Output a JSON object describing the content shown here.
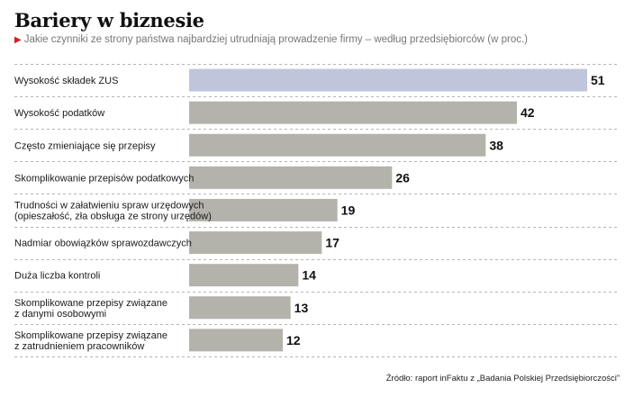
{
  "chart_data": {
    "type": "bar",
    "orientation": "horizontal",
    "title": "Bariery w biznesie",
    "subtitle": "Jakie czynniki ze strony państwa najbardziej utrudniają prowadzenie firmy – według przedsiębiorców (w proc.)",
    "categories": [
      [
        "Wysokość składek ZUS"
      ],
      [
        "Wysokość podatków"
      ],
      [
        "Często zmieniające się przepisy"
      ],
      [
        "Skomplikowanie przepisów podatkowych"
      ],
      [
        "Trudności w załatwieniu spraw urzędowych",
        "(opieszałość, zła obsługa ze strony urzędów)"
      ],
      [
        "Nadmiar obowiązków sprawozdawczych"
      ],
      [
        "Duża liczba kontroli"
      ],
      [
        "Skomplikowane przepisy związane",
        "z danymi osobowymi"
      ],
      [
        "Skomplikowane przepisy związane",
        "z zatrudnieniem pracowników"
      ]
    ],
    "values": [
      51,
      42,
      38,
      26,
      19,
      17,
      14,
      13,
      12
    ],
    "value_labels": [
      "51",
      "42",
      "38",
      "26",
      "19",
      "17",
      "14",
      "13",
      "12"
    ],
    "highlight_index": 0,
    "colors": {
      "highlight": "#bfc5da",
      "bar": "#b4b3ab",
      "grid": "#b5b5b5",
      "subtitle_arrow": "#d81e1e"
    },
    "xlim": [
      0,
      51
    ],
    "grid": "dashed row separators",
    "source": "Źródło: raport inFaktu z „Badania Polskiej Przedsiębiorczości”"
  }
}
